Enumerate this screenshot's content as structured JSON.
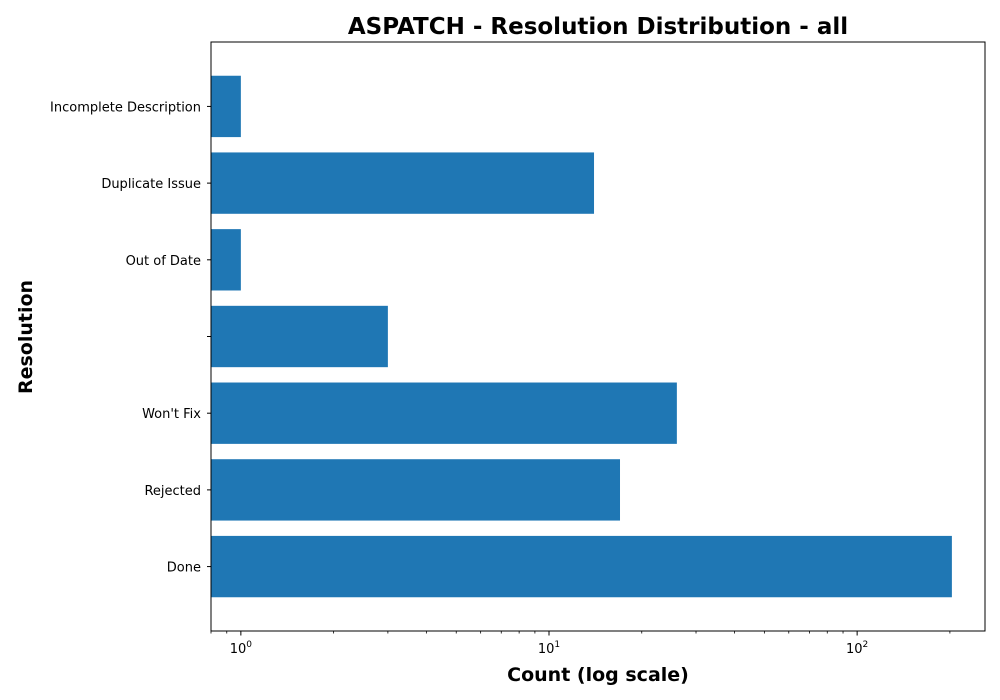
{
  "chart_data": {
    "type": "bar",
    "orientation": "horizontal",
    "title": "ASPATCH - Resolution Distribution - all",
    "xlabel": "Count (log scale)",
    "ylabel": "Resolution",
    "x_scale": "log",
    "xlim": [
      0.8,
      260
    ],
    "x_ticks": [
      {
        "value": 1,
        "base": "10",
        "exp": "0"
      },
      {
        "value": 10,
        "base": "10",
        "exp": "1"
      },
      {
        "value": 100,
        "base": "10",
        "exp": "2"
      }
    ],
    "grid": false,
    "legend": "none",
    "bar_color": "#1f77b4",
    "categories": [
      "Done",
      "Rejected",
      "Won't Fix",
      "",
      "Out of Date",
      "Duplicate Issue",
      "Incomplete Description"
    ],
    "values": [
      203,
      17,
      26,
      3,
      1,
      14,
      1
    ]
  }
}
